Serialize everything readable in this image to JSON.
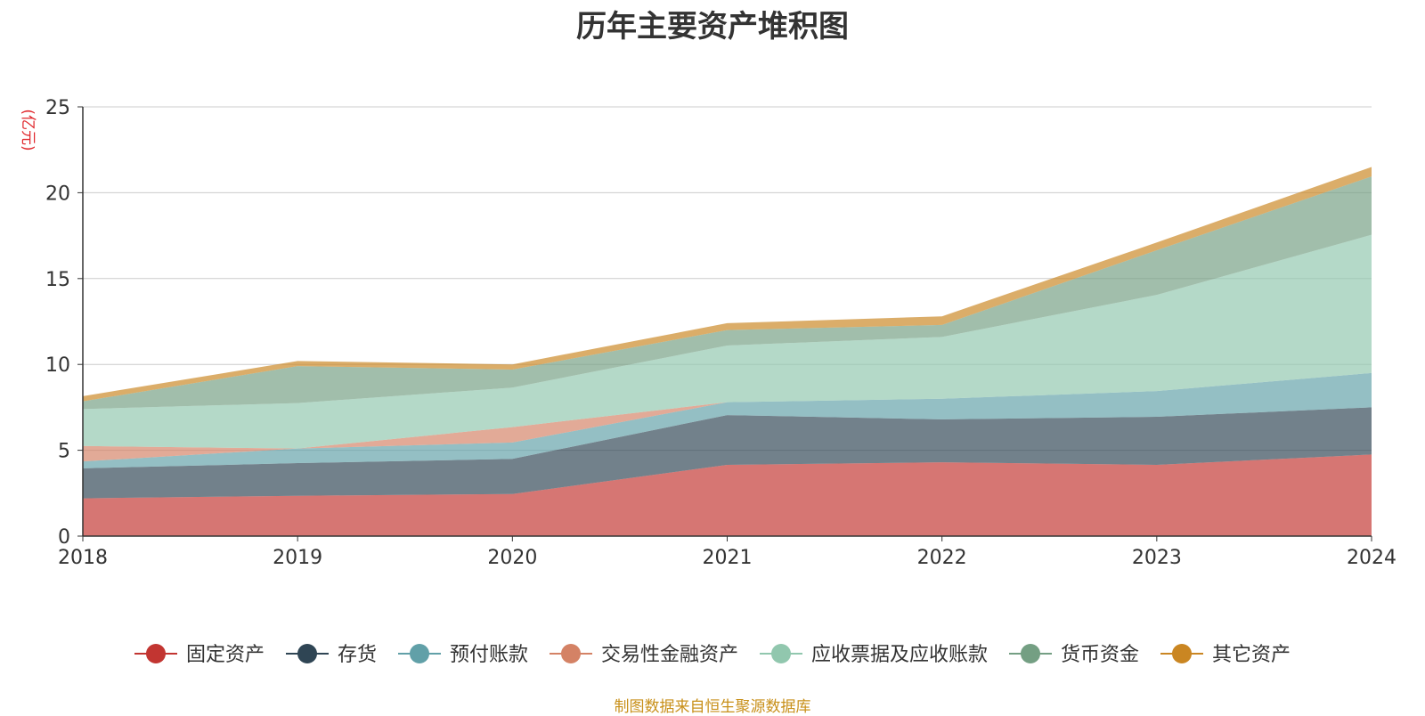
{
  "chart_data": {
    "type": "area",
    "stacked": true,
    "title": "历年主要资产堆积图",
    "ylabel": "(亿元)",
    "xlabel": "",
    "ylim": [
      0,
      25
    ],
    "yticks": [
      0,
      5,
      10,
      15,
      20,
      25
    ],
    "x": [
      "2018",
      "2019",
      "2020",
      "2021",
      "2022",
      "2023",
      "2024"
    ],
    "grid": true,
    "legend_position": "bottom",
    "series": [
      {
        "name": "固定资产",
        "color": "#c23531",
        "values": [
          2.2,
          2.35,
          2.45,
          4.15,
          4.3,
          4.15,
          4.75
        ]
      },
      {
        "name": "存货",
        "color": "#2f4554",
        "values": [
          1.75,
          1.9,
          2.05,
          2.9,
          2.5,
          2.8,
          2.75
        ]
      },
      {
        "name": "预付账款",
        "color": "#61a0a8",
        "values": [
          0.4,
          0.85,
          0.95,
          0.75,
          1.2,
          1.5,
          2.0
        ]
      },
      {
        "name": "交易性金融资产",
        "color": "#d48265",
        "values": [
          0.9,
          0.0,
          0.9,
          0.0,
          0.0,
          0.0,
          0.0
        ]
      },
      {
        "name": "应收票据及应收账款",
        "color": "#91c7ae",
        "values": [
          2.15,
          2.65,
          2.3,
          3.3,
          3.6,
          5.6,
          8.05
        ]
      },
      {
        "name": "货币资金",
        "color": "#749f83",
        "values": [
          0.45,
          2.15,
          1.05,
          0.9,
          0.7,
          2.6,
          3.4
        ]
      },
      {
        "name": "其它资产",
        "color": "#ca8622",
        "values": [
          0.3,
          0.3,
          0.3,
          0.4,
          0.5,
          0.45,
          0.55
        ]
      }
    ]
  },
  "source_note": "制图数据来自恒生聚源数据库"
}
